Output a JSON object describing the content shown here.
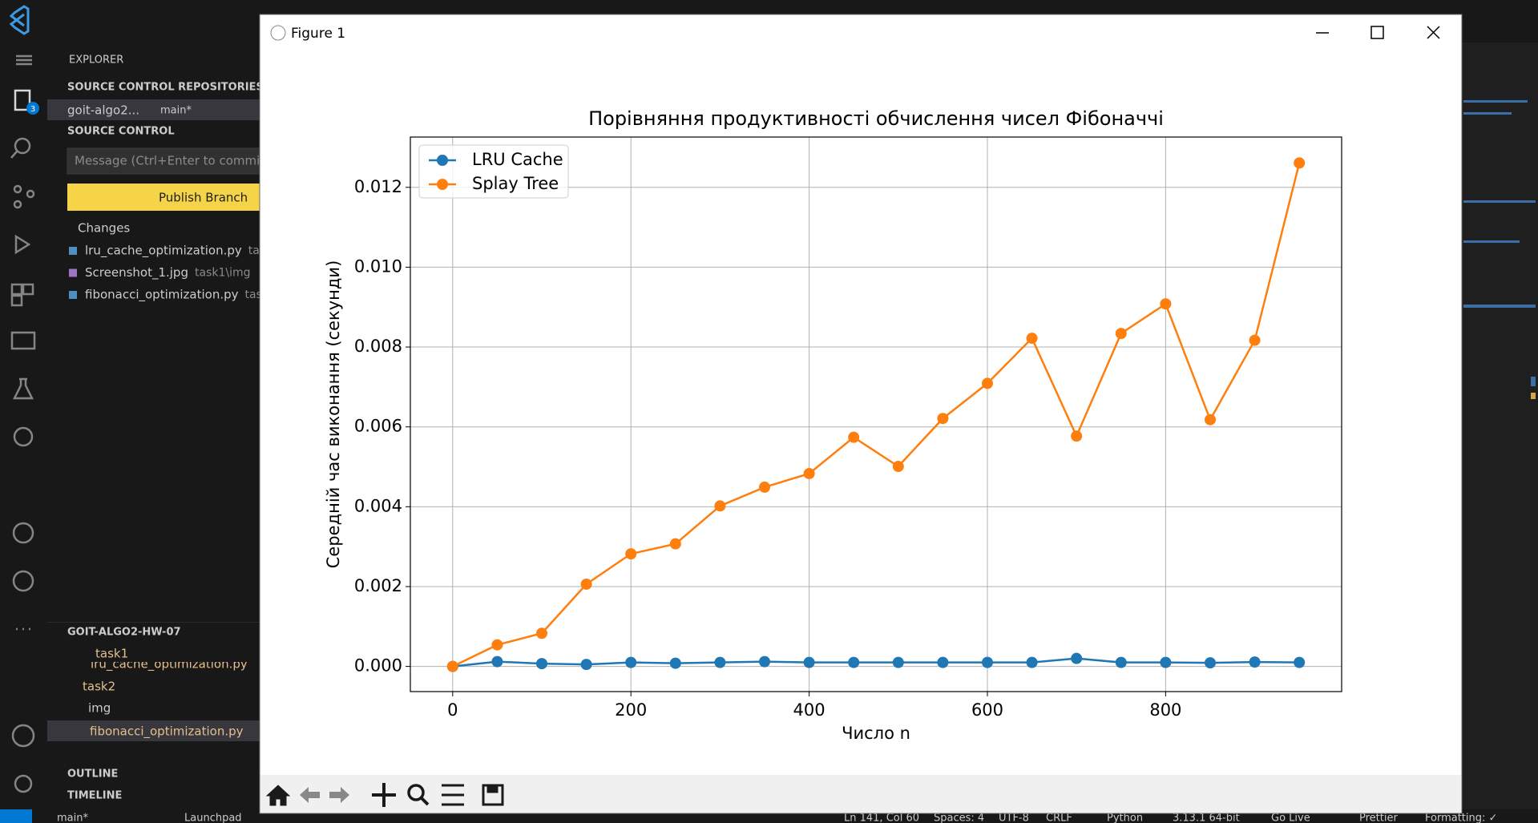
{
  "vscode": {
    "explorer": "EXPLORER",
    "badge": "3",
    "repos_header": "SOURCE CONTROL REPOSITORIES",
    "repo": "goit-algo2...",
    "branch": "main*",
    "sc_header": "SOURCE CONTROL",
    "message_placeholder": "Message (Ctrl+Enter to commit",
    "publish": "Publish Branch",
    "changes": "Changes",
    "changed_files": [
      {
        "name": "lru_cache_optimization.py",
        "path": "task"
      },
      {
        "name": "Screenshot_1.jpg",
        "path": "task1\\img"
      },
      {
        "name": "fibonacci_optimization.py",
        "path": "task"
      }
    ],
    "folder_header": "GOIT-ALGO2-HW-07",
    "tree": [
      "task1",
      "lru_cache_optimization.py",
      "task2",
      "img",
      "fibonacci_optimization.py"
    ],
    "outline": "OUTLINE",
    "timeline": "TIMELINE",
    "status": [
      "main*",
      "Launchpad",
      "Ln 141, Col 60",
      "Spaces: 4",
      "UTF-8",
      "CRLF",
      "Python",
      "3.13.1 64-bit",
      "Go Live",
      "Prettier",
      "Formatting: ✓"
    ]
  },
  "window": {
    "title": "Figure 1"
  },
  "chart_data": {
    "type": "line",
    "title": "Порівняння продуктивності обчислення чисел Фібоначчі",
    "xlabel": "Число n",
    "ylabel": "Середній час виконання (секунди)",
    "x": [
      0,
      50,
      100,
      150,
      200,
      250,
      300,
      350,
      400,
      450,
      500,
      550,
      600,
      650,
      700,
      750,
      800,
      850,
      900,
      950
    ],
    "series": [
      {
        "name": "LRU Cache",
        "color": "#1f77b4",
        "values": [
          0,
          0.00012,
          7e-05,
          5e-05,
          0.0001,
          8e-05,
          0.0001,
          0.00012,
          0.0001,
          0.0001,
          0.0001,
          0.0001,
          0.0001,
          0.0001,
          0.0002,
          0.0001,
          0.0001,
          9e-05,
          0.00011,
          0.0001
        ]
      },
      {
        "name": "Splay Tree",
        "color": "#ff7f0e",
        "values": [
          0,
          0.00054,
          0.00083,
          0.00206,
          0.00282,
          0.00307,
          0.00402,
          0.00449,
          0.00483,
          0.00574,
          0.00501,
          0.00621,
          0.00709,
          0.00822,
          0.00577,
          0.00834,
          0.00908,
          0.00618,
          0.00817,
          0.01261
        ]
      }
    ],
    "xlim": [
      -47.5,
      997.5
    ],
    "xticks": [
      0,
      200,
      400,
      600,
      800
    ],
    "ylim": [
      -0.00063,
      0.01326
    ],
    "yticks": [
      {
        "value": 0,
        "label": "0.000"
      },
      {
        "value": 0.002,
        "label": "0.002"
      },
      {
        "value": 0.004,
        "label": "0.004"
      },
      {
        "value": 0.006,
        "label": "0.006"
      },
      {
        "value": 0.008,
        "label": "0.008"
      },
      {
        "value": 0.01,
        "label": "0.010"
      },
      {
        "value": 0.012,
        "label": "0.012"
      }
    ],
    "grid": true,
    "legend": "upper left"
  }
}
